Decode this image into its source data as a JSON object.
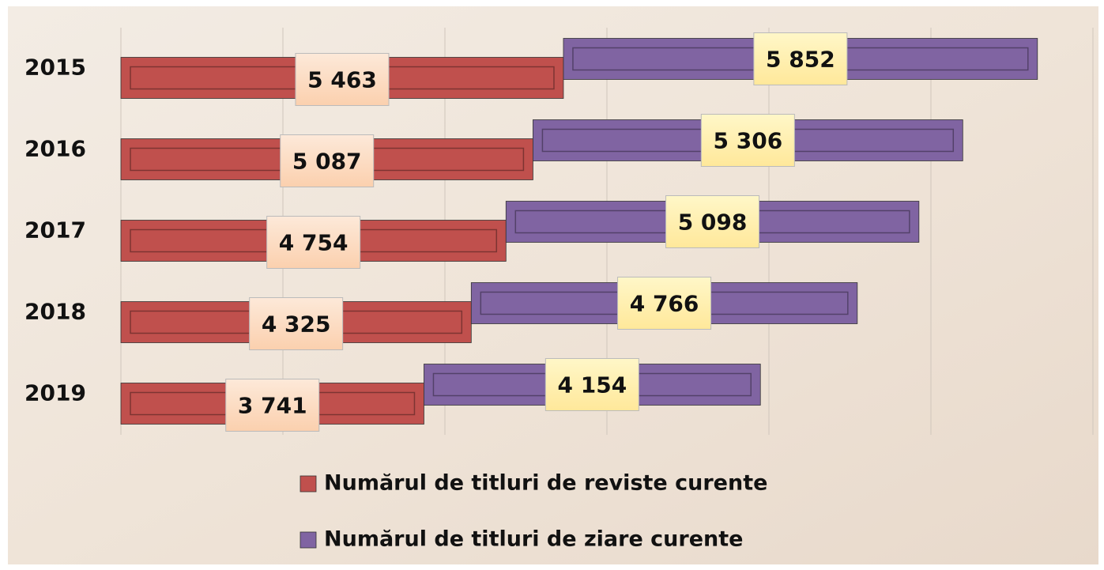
{
  "chart_data": {
    "type": "stacked-bar-horizontal",
    "categories": [
      "2015",
      "2016",
      "2017",
      "2018",
      "2019"
    ],
    "series": [
      {
        "name": "Numărul de titluri de reviste curente",
        "color": "#c0504d",
        "values": [
          5463,
          5087,
          4754,
          4325,
          3741
        ],
        "value_labels": [
          "5 463",
          "5 087",
          "4 754",
          "4 325",
          "3 741"
        ]
      },
      {
        "name": "Numărul de titluri de ziare curente",
        "color": "#8064a2",
        "values": [
          5852,
          5306,
          5098,
          4766,
          4154
        ],
        "value_labels": [
          "5 852",
          "5 306",
          "5 098",
          "4 766",
          "4 154"
        ]
      }
    ],
    "xlim": [
      0,
      12000
    ],
    "xticks": [
      0,
      2000,
      4000,
      6000,
      8000,
      10000,
      12000
    ],
    "grid": true
  }
}
